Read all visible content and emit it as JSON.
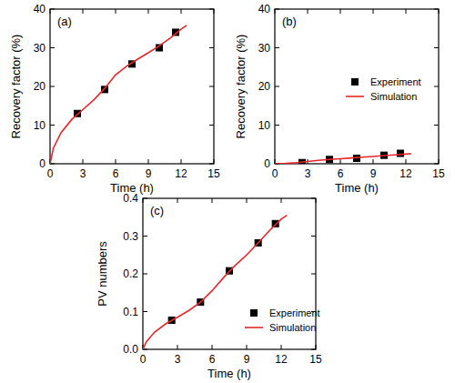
{
  "chart_data": [
    {
      "type": "line",
      "title": "(a)",
      "x_label": "Time (h)",
      "y_label": "Recovery factor (%)",
      "xlim": [
        0,
        15
      ],
      "ylim": [
        0,
        40
      ],
      "xticks": [
        0,
        3,
        6,
        9,
        12,
        15
      ],
      "yticks": [
        0,
        10,
        20,
        30,
        40
      ],
      "series": [
        {
          "type": "scatter",
          "color": "#000000",
          "marker": "square",
          "x": [
            2.5,
            5,
            7.5,
            10,
            11.5
          ],
          "values": [
            13,
            19.2,
            25.8,
            30,
            34
          ]
        },
        {
          "type": "line",
          "color": "#e8262a",
          "line_style": "solid",
          "x": [
            0,
            0.3,
            1,
            2,
            3,
            4,
            5,
            6,
            7,
            8,
            9,
            10,
            11,
            12,
            12.5
          ],
          "values": [
            0,
            4,
            8,
            11.5,
            14,
            16.5,
            19.5,
            23,
            25.2,
            27,
            28.7,
            30.5,
            32.5,
            34.8,
            35.8
          ]
        }
      ]
    },
    {
      "type": "line",
      "title": "(b)",
      "x_label": "Time (h)",
      "y_label": "Recovery factor (%)",
      "xlim": [
        0,
        15
      ],
      "ylim": [
        0,
        40
      ],
      "xticks": [
        0,
        3,
        6,
        9,
        12,
        15
      ],
      "yticks": [
        0,
        10,
        20,
        30,
        40
      ],
      "legend": "right",
      "series": [
        {
          "name": "Experiment",
          "type": "scatter",
          "color": "#000000",
          "marker": "square",
          "x": [
            2.5,
            5,
            7.5,
            10,
            11.5
          ],
          "values": [
            0.3,
            1.1,
            1.4,
            2.2,
            2.7
          ]
        },
        {
          "name": "Simulation",
          "type": "line",
          "color": "#e8262a",
          "line_style": "solid",
          "x": [
            0,
            1,
            2,
            3,
            4,
            5,
            6,
            7,
            8,
            9,
            10,
            11,
            12,
            12.5
          ],
          "values": [
            0,
            0.1,
            0.3,
            0.6,
            0.9,
            1.1,
            1.3,
            1.5,
            1.7,
            1.9,
            2.1,
            2.3,
            2.5,
            2.6
          ]
        }
      ]
    },
    {
      "type": "line",
      "title": "(c)",
      "x_label": "Time (h)",
      "y_label": "PV numbers",
      "xlim": [
        0,
        15
      ],
      "ylim": [
        0,
        0.4
      ],
      "xticks": [
        0,
        3,
        6,
        9,
        12,
        15
      ],
      "yticks": [
        {
          "value": 0,
          "label": "0.0"
        },
        0.1,
        0.2,
        0.3,
        0.4
      ],
      "legend": "lower right",
      "series": [
        {
          "name": "Experiment",
          "type": "scatter",
          "color": "#000000",
          "marker": "square",
          "x": [
            2.5,
            5,
            7.5,
            10,
            11.5
          ],
          "values": [
            0.077,
            0.125,
            0.208,
            0.282,
            0.333
          ]
        },
        {
          "name": "Simulation",
          "type": "line",
          "color": "#e8262a",
          "line_style": "solid",
          "x": [
            0,
            0.3,
            1,
            2,
            3,
            4,
            5,
            6,
            7,
            8,
            9,
            10,
            11,
            12,
            12.5
          ],
          "values": [
            0,
            0.02,
            0.045,
            0.068,
            0.085,
            0.103,
            0.125,
            0.155,
            0.19,
            0.222,
            0.25,
            0.282,
            0.315,
            0.345,
            0.355
          ]
        }
      ]
    }
  ]
}
